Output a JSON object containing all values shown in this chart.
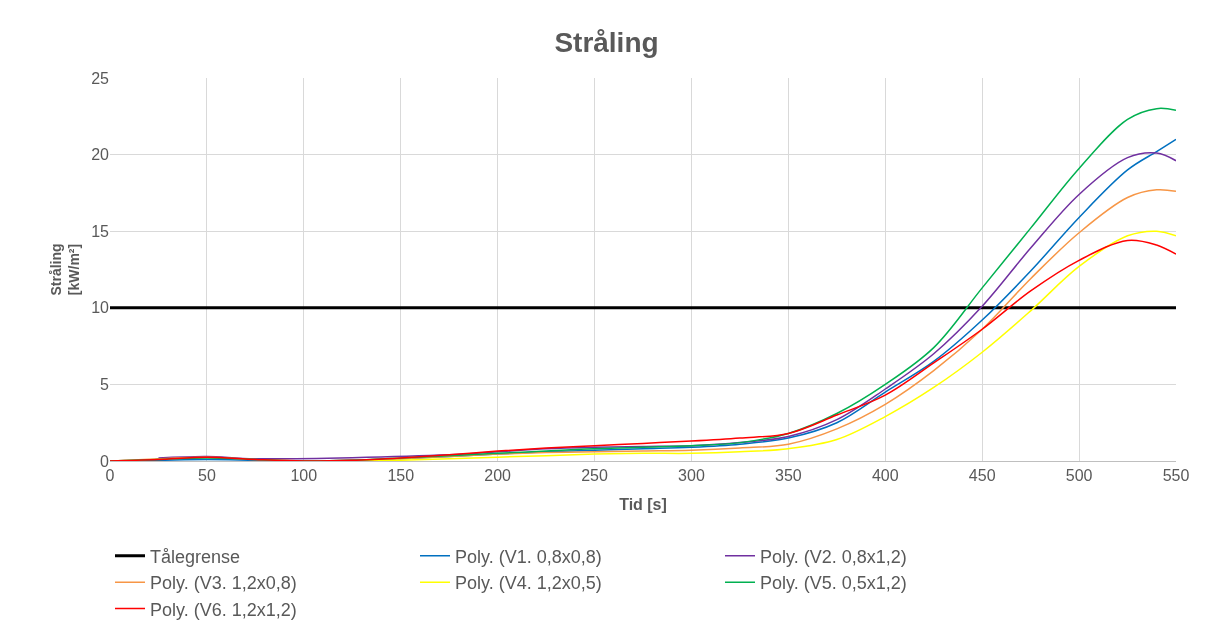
{
  "chart_data": {
    "type": "line",
    "title": "Stråling",
    "xlabel": "Tid [s]",
    "ylabel": "Stråling\n[kW/m²]",
    "x": [
      0,
      25,
      50,
      75,
      100,
      125,
      150,
      175,
      200,
      225,
      250,
      275,
      300,
      325,
      350,
      375,
      400,
      425,
      450,
      475,
      500,
      525,
      540,
      550
    ],
    "xlim": [
      0,
      550
    ],
    "xticks": [
      0,
      50,
      100,
      150,
      200,
      250,
      300,
      350,
      400,
      450,
      500,
      550
    ],
    "ylim": [
      0,
      25
    ],
    "yticks": [
      0,
      5,
      10,
      15,
      20,
      25
    ],
    "grid": true,
    "legend": "bottom",
    "marker": "none",
    "line_style": "solid",
    "series": [
      {
        "name": "Tålegrense",
        "color": "#000000",
        "x": [
          0,
          550
        ],
        "values": [
          10,
          10
        ]
      },
      {
        "name": "Poly. (V1. 0,8x0,8)",
        "color": "#0070c0",
        "values": [
          0,
          0.05,
          0.1,
          0.05,
          0,
          0.05,
          0.15,
          0.3,
          0.45,
          0.6,
          0.7,
          0.8,
          0.9,
          1.1,
          1.5,
          2.5,
          4.5,
          6.5,
          9.2,
          12.4,
          15.9,
          19,
          20.2,
          21.0
        ]
      },
      {
        "name": "Poly. (V2. 0,8x1,2)",
        "color": "#7030a0",
        "values": [
          null,
          0.2,
          0.3,
          0.15,
          null,
          null,
          null,
          0.4,
          0.6,
          0.8,
          0.9,
          0.95,
          1.0,
          1.2,
          1.6,
          2.7,
          4.7,
          7,
          10.1,
          13.9,
          17.4,
          19.8,
          20.1,
          19.6
        ]
      },
      {
        "name": "Poly. (V3. 1,2x0,8)",
        "color": "#f79646",
        "values": [
          0,
          0.15,
          0.25,
          0.1,
          0,
          0.05,
          0.15,
          0.3,
          0.45,
          0.55,
          0.6,
          0.65,
          0.7,
          0.85,
          1.1,
          2.1,
          3.7,
          5.9,
          8.6,
          11.9,
          14.9,
          17.2,
          17.7,
          17.6
        ]
      },
      {
        "name": "Poly. (V4. 1,2x0,5)",
        "color": "#ffff00",
        "values": [
          null,
          null,
          null,
          null,
          0,
          0,
          0.05,
          0.15,
          0.25,
          0.35,
          0.45,
          0.5,
          0.5,
          0.6,
          0.8,
          1.4,
          2.9,
          4.8,
          7.1,
          9.8,
          12.7,
          14.7,
          15.0,
          14.7
        ]
      },
      {
        "name": "Poly. (V5. 0,5x1,2)",
        "color": "#00b050",
        "values": [
          0,
          0.1,
          0.2,
          0.1,
          0,
          0.05,
          0.2,
          0.35,
          0.5,
          0.65,
          0.8,
          0.9,
          1.0,
          1.2,
          1.8,
          3.1,
          5.0,
          7.4,
          11.3,
          15.2,
          19.1,
          22.3,
          23.0,
          22.9
        ]
      },
      {
        "name": "Poly. (V6. 1,2x1,2)",
        "color": "#ff0000",
        "values": [
          0,
          0.1,
          0.25,
          0.1,
          0,
          0.05,
          0.2,
          0.4,
          0.65,
          0.85,
          1.0,
          1.15,
          1.3,
          1.5,
          1.8,
          3.0,
          4.3,
          6.4,
          8.6,
          11.1,
          13.1,
          14.4,
          14.1,
          13.5
        ]
      }
    ]
  }
}
